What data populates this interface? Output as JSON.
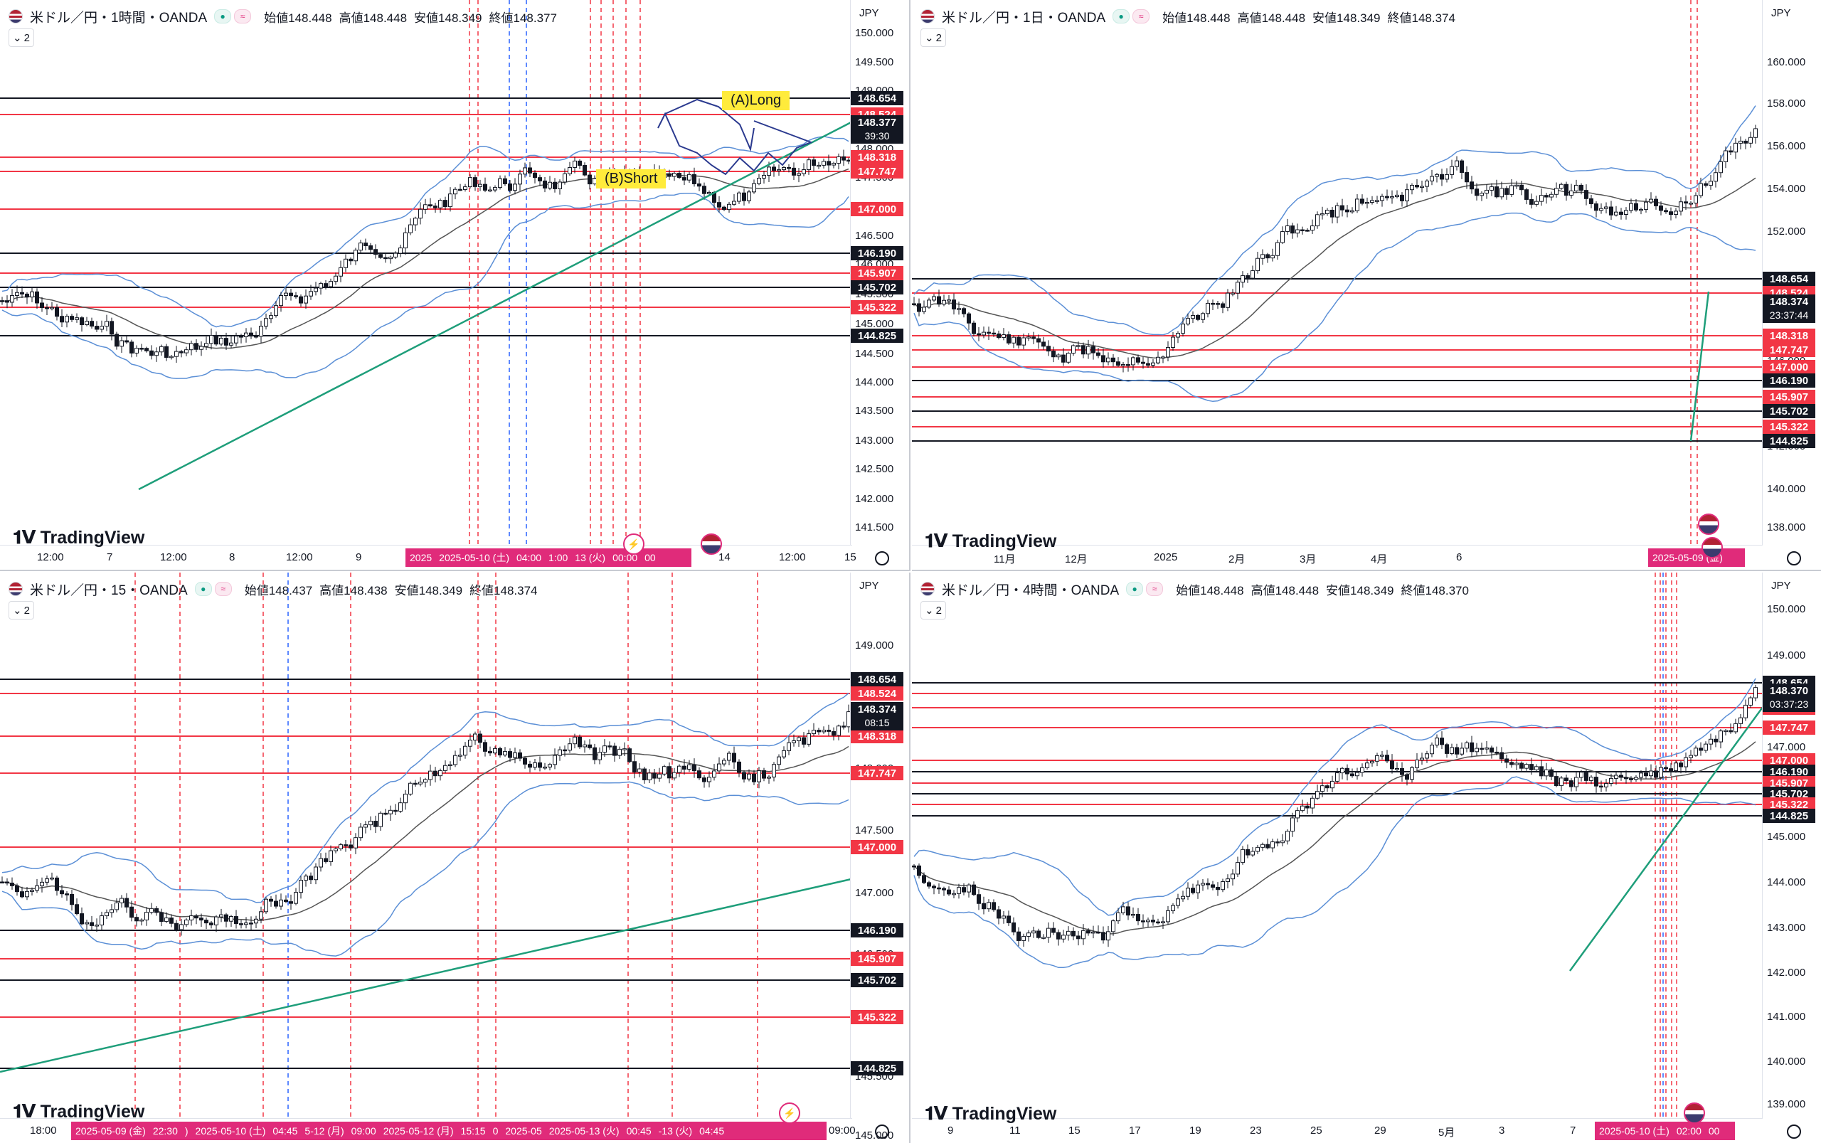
{
  "panes": [
    {
      "symbol": "米ドル／円・1時間・OANDA",
      "ohlc": [
        "始値148.448",
        "高値148.448",
        "安値148.349",
        "終値148.377"
      ],
      "badge": "2",
      "currency": "JPY",
      "yticks": [
        "150.000",
        "149.500",
        "149.000",
        "148.500",
        "148.000",
        "147.500",
        "147.000",
        "146.500",
        "146.000",
        "145.500",
        "145.000",
        "144.500",
        "144.000",
        "143.500",
        "143.000",
        "142.500",
        "142.000",
        "141.500"
      ],
      "levels": [
        "148.654",
        "148.524",
        "148.318",
        "147.747",
        "147.000",
        "146.190",
        "145.907",
        "145.702",
        "145.322",
        "144.825"
      ],
      "current": {
        "price": "148.377",
        "time": "39:30"
      },
      "xticks": [
        "12:00",
        "7",
        "12:00",
        "8",
        "12:00",
        "9",
        "14",
        "12:00",
        "15"
      ],
      "xbar": [
        "2025",
        "2025-05-10 (土)",
        "04:00",
        "1:00",
        "13 (火)",
        "00:00",
        "00"
      ],
      "notes": [
        "(A)Long",
        "(B)Short"
      ],
      "logo": "TradingView"
    },
    {
      "symbol": "米ドル／円・1日・OANDA",
      "ohlc": [
        "始値148.448",
        "高値148.448",
        "安値148.349",
        "終値148.374"
      ],
      "badge": "2",
      "currency": "JPY",
      "yticks": [
        "160.000",
        "158.000",
        "156.000",
        "154.000",
        "152.000",
        "150.000",
        "148.000",
        "146.000",
        "144.000",
        "142.000",
        "140.000",
        "138.000"
      ],
      "levels": [
        "148.654",
        "148.524",
        "148.318",
        "147.747",
        "147.000",
        "146.190",
        "145.907",
        "145.702",
        "145.322",
        "144.825"
      ],
      "current": {
        "price": "148.374",
        "time": "23:37:44"
      },
      "xticks": [
        "11月",
        "12月",
        "2025",
        "2月",
        "3月",
        "4月",
        "6"
      ],
      "xbar": [
        "2025-05-09 (金)"
      ],
      "logo": "TradingView"
    },
    {
      "symbol": "米ドル／円・15・OANDA",
      "ohlc": [
        "始値148.437",
        "高値148.438",
        "安値148.349",
        "終値148.374"
      ],
      "badge": "2",
      "currency": "JPY",
      "yticks": [
        "149.000",
        "148.500",
        "148.000",
        "147.500",
        "147.000",
        "146.500",
        "146.000",
        "145.500",
        "145.000",
        "144.500"
      ],
      "levels": [
        "148.654",
        "148.524",
        "148.318",
        "147.747",
        "147.000",
        "146.190",
        "145.907",
        "145.702",
        "145.322",
        "144.825"
      ],
      "current": {
        "price": "148.374",
        "time": "08:15"
      },
      "xticks": [
        "18:00",
        "09:00"
      ],
      "xbar": [
        "2025-05-09 (金)",
        "22:30",
        ")",
        "2025-05-10 (土)",
        "04:45",
        "5-12 (月)",
        "09:00",
        "2025-05-12 (月)",
        "15:15",
        "0",
        "2025-05",
        "2025-05-13 (火)",
        "00:45",
        "-13 (火)",
        "04:45"
      ],
      "logo": "TradingView"
    },
    {
      "symbol": "米ドル／円・4時間・OANDA",
      "ohlc": [
        "始値148.448",
        "高値148.448",
        "安値148.349",
        "終値148.370"
      ],
      "badge": "2",
      "currency": "JPY",
      "yticks": [
        "150.000",
        "149.000",
        "148.000",
        "147.000",
        "146.000",
        "145.000",
        "144.000",
        "143.000",
        "142.000",
        "141.000",
        "140.000",
        "139.000"
      ],
      "levels": [
        "148.654",
        "148.524",
        "148.318",
        "147.747",
        "147.000",
        "146.190",
        "145.907",
        "145.702",
        "145.322",
        "144.825"
      ],
      "current": {
        "price": "148.370",
        "time": "03:37:23"
      },
      "xticks": [
        "9",
        "11",
        "15",
        "17",
        "19",
        "23",
        "25",
        "29",
        "5月",
        "3",
        "7"
      ],
      "xbar": [
        "2025-05-10 (土)",
        "02:00",
        "00"
      ],
      "logo": "TradingView"
    }
  ],
  "colors": {
    "up": "#131722",
    "down": "#131722",
    "red_line": "#f23645",
    "black_line": "#131722",
    "band": "#5b8fd6",
    "ma": "#555555",
    "trend": "#1e9e7a",
    "accent": "#e02b7a"
  }
}
